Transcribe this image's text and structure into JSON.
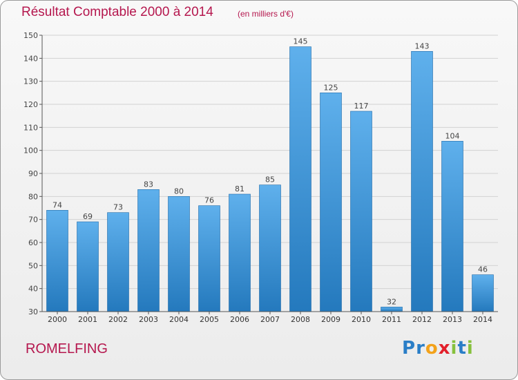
{
  "header": {
    "title": "Résultat Comptable 2000 à 2014",
    "subtitle": "(en milliers d'€)"
  },
  "footer": {
    "commune": "ROMELFING",
    "logo_text": "Proxiti"
  },
  "colors": {
    "title": "#b5174e",
    "bar_top": "#5fb0ec",
    "bar_bottom": "#2479bd"
  },
  "chart_data": {
    "type": "bar",
    "title": "Résultat Comptable 2000 à 2014",
    "subtitle": "(en milliers d'€)",
    "categories": [
      "2000",
      "2001",
      "2002",
      "2003",
      "2004",
      "2005",
      "2006",
      "2007",
      "2008",
      "2009",
      "2010",
      "2011",
      "2012",
      "2013",
      "2014"
    ],
    "values": [
      74,
      69,
      73,
      83,
      80,
      76,
      81,
      85,
      145,
      125,
      117,
      32,
      143,
      104,
      46
    ],
    "ylim": [
      30,
      150
    ],
    "yticks": [
      30,
      40,
      50,
      60,
      70,
      80,
      90,
      100,
      110,
      120,
      130,
      140,
      150
    ],
    "grid": true,
    "data_labels": true
  }
}
